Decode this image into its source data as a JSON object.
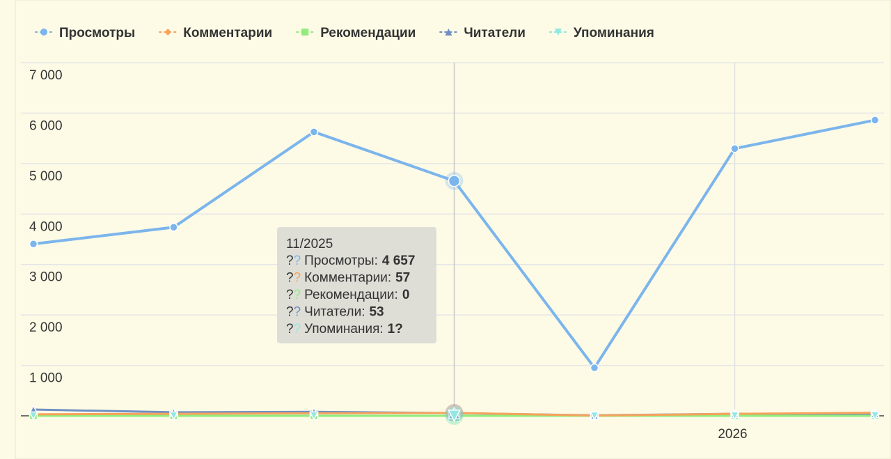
{
  "chart_data": {
    "type": "line",
    "categories": [
      null,
      null,
      null,
      null,
      null,
      "2026",
      null
    ],
    "series": [
      {
        "name": "Просмотры",
        "color": "#7cb5ec",
        "marker": "circle",
        "values": [
          3407,
          3738,
          5628,
          4657,
          952,
          5297,
          5862
        ],
        "value_labels": [
          null,
          null,
          null,
          "4 657",
          null,
          null,
          null
        ]
      },
      {
        "name": "Комментарии",
        "color": "#f7a35c",
        "marker": "diamond",
        "values": [
          30,
          40,
          50,
          57,
          5,
          40,
          60
        ]
      },
      {
        "name": "Рекомендации",
        "color": "#90ed7d",
        "marker": "square",
        "values": [
          0,
          0,
          0,
          0,
          0,
          0,
          0
        ]
      },
      {
        "name": "Читатели",
        "color": "#6f8fc4",
        "marker": "triangle",
        "values": [
          124,
          70,
          80,
          53,
          10,
          40,
          40
        ]
      },
      {
        "name": "Упоминания",
        "color": "#91e8e1",
        "marker": "triangle-down",
        "values": [
          2,
          1,
          3,
          1,
          0,
          2,
          3
        ],
        "value_labels": [
          null,
          null,
          null,
          "1?",
          null,
          null,
          null
        ]
      }
    ],
    "ylim": [
      0,
      7000
    ],
    "yticks": [
      {
        "value": 1000,
        "label": "1 000"
      },
      {
        "value": 2000,
        "label": "2 000"
      },
      {
        "value": 3000,
        "label": "3 000"
      },
      {
        "value": 4000,
        "label": "4 000"
      },
      {
        "value": 5000,
        "label": "5 000"
      },
      {
        "value": 6000,
        "label": "6 000"
      },
      {
        "value": 7000,
        "label": "7 000"
      }
    ],
    "grid": true,
    "legend": "top",
    "tooltip": {
      "title": "11/2025",
      "marker": "?"
    }
  }
}
